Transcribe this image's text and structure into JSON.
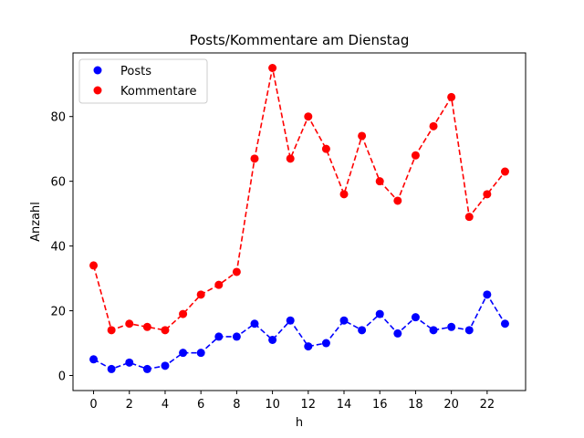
{
  "chart_data": {
    "type": "line",
    "title": "Posts/Kommentare am Dienstag",
    "xlabel": "h",
    "ylabel": "Anzahl",
    "x": [
      0,
      1,
      2,
      3,
      4,
      5,
      6,
      7,
      8,
      9,
      10,
      11,
      12,
      13,
      14,
      15,
      16,
      17,
      18,
      19,
      20,
      21,
      22,
      23
    ],
    "xticks": [
      0,
      2,
      4,
      6,
      8,
      10,
      12,
      14,
      16,
      18,
      20,
      22
    ],
    "yticks": [
      0,
      20,
      40,
      60,
      80
    ],
    "xlim": [
      -1.15,
      24.15
    ],
    "ylim": [
      -4.65,
      99.65
    ],
    "grid": false,
    "legend_position": "top-left",
    "series": [
      {
        "name": "Posts",
        "color": "#0000ff",
        "values": [
          5,
          2,
          4,
          2,
          3,
          7,
          7,
          12,
          12,
          16,
          11,
          17,
          9,
          10,
          17,
          14,
          19,
          13,
          18,
          14,
          15,
          14,
          25,
          16
        ]
      },
      {
        "name": "Kommentare",
        "color": "#ff0000",
        "values": [
          34,
          14,
          16,
          15,
          14,
          19,
          25,
          28,
          32,
          67,
          95,
          67,
          80,
          70,
          56,
          74,
          60,
          54,
          68,
          77,
          86,
          49,
          56,
          63
        ]
      }
    ]
  }
}
